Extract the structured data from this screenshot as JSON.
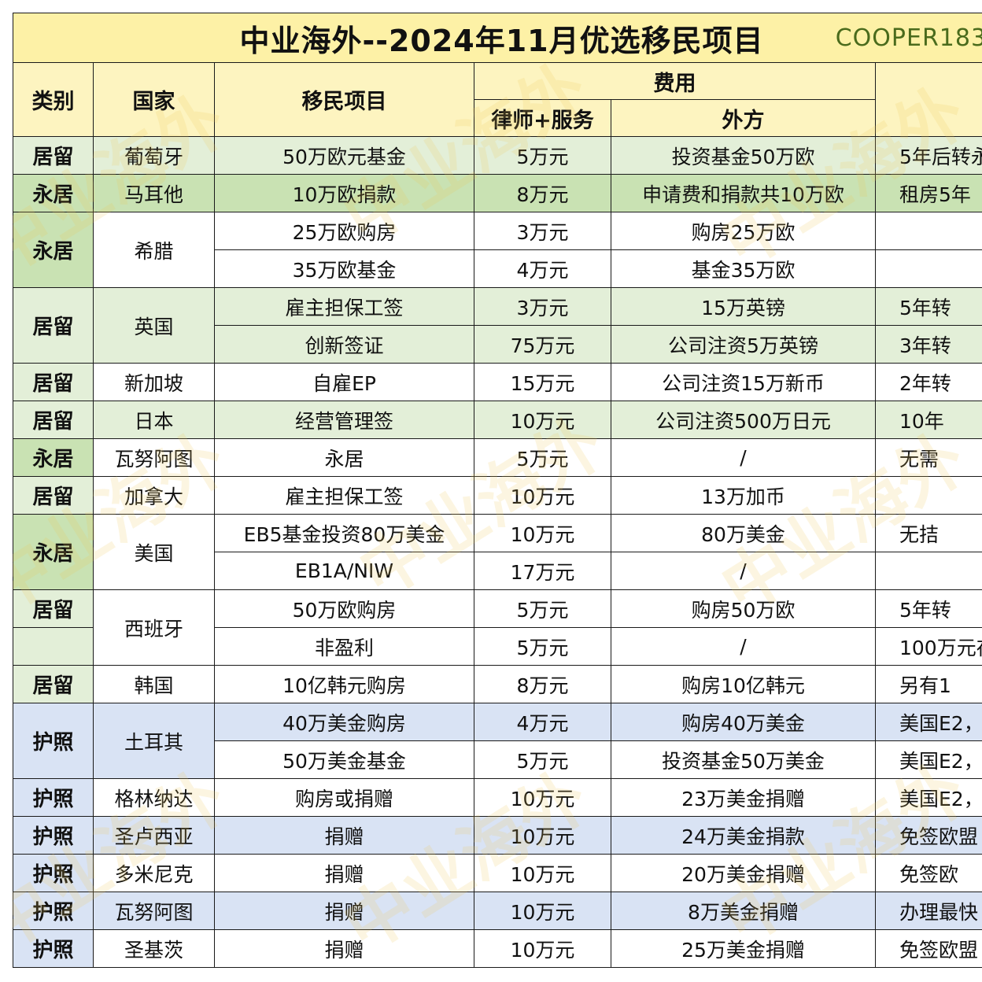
{
  "title": "中业海外--2024年11月优选移民项目",
  "tag": "COOPER183",
  "watermark": "中业海外",
  "headers": {
    "category": "类别",
    "country": "国家",
    "project": "移民项目",
    "fee": "费用",
    "lawyer": "律师+服务",
    "foreign": "外方"
  },
  "rows": [
    {
      "cat": "居留",
      "country": "葡萄牙",
      "project": "50万欧元基金",
      "lawyer": "5万元",
      "foreign": "投资基金50万欧",
      "note": "5年后转永"
    },
    {
      "cat": "永居",
      "country": "马耳他",
      "project": "10万欧捐款",
      "lawyer": "8万元",
      "foreign": "申请费和捐款共10万欧",
      "note": "租房5年"
    },
    {
      "cat": "永居",
      "country": "希腊",
      "project": "25万欧购房",
      "lawyer": "3万元",
      "foreign": "购房25万欧",
      "note": ""
    },
    {
      "cat": "",
      "country": "",
      "project": "35万欧基金",
      "lawyer": "4万元",
      "foreign": "基金35万欧",
      "note": ""
    },
    {
      "cat": "居留",
      "country": "英国",
      "project": "雇主担保工签",
      "lawyer": "3万元",
      "foreign": "15万英镑",
      "note": "5年转"
    },
    {
      "cat": "",
      "country": "",
      "project": "创新签证",
      "lawyer": "75万元",
      "foreign": "公司注资5万英镑",
      "note": "3年转"
    },
    {
      "cat": "居留",
      "country": "新加坡",
      "project": "自雇EP",
      "lawyer": "15万元",
      "foreign": "公司注资15万新币",
      "note": "2年转"
    },
    {
      "cat": "居留",
      "country": "日本",
      "project": "经营管理签",
      "lawyer": "10万元",
      "foreign": "公司注资500万日元",
      "note": "10年"
    },
    {
      "cat": "永居",
      "country": "瓦努阿图",
      "project": "永居",
      "lawyer": "5万元",
      "foreign": "/",
      "note": "无需"
    },
    {
      "cat": "居留",
      "country": "加拿大",
      "project": "雇主担保工签",
      "lawyer": "10万元",
      "foreign": "13万加币",
      "note": ""
    },
    {
      "cat": "永居",
      "country": "美国",
      "project": "EB5基金投资80万美金",
      "lawyer": "10万元",
      "foreign": "80万美金",
      "note": "无拮"
    },
    {
      "cat": "",
      "country": "",
      "project": "EB1A/NIW",
      "lawyer": "17万元",
      "foreign": "/",
      "note": ""
    },
    {
      "cat": "居留",
      "country": "西班牙",
      "project": "50万欧购房",
      "lawyer": "5万元",
      "foreign": "购房50万欧",
      "note": "5年转"
    },
    {
      "cat": "",
      "country": "",
      "project": "非盈利",
      "lawyer": "5万元",
      "foreign": "/",
      "note": "100万元存"
    },
    {
      "cat": "居留",
      "country": "韩国",
      "project": "10亿韩元购房",
      "lawyer": "8万元",
      "foreign": "购房10亿韩元",
      "note": "另有1"
    },
    {
      "cat": "护照",
      "country": "土耳其",
      "project": "40万美金购房",
      "lawyer": "4万元",
      "foreign": "购房40万美金",
      "note": "美国E2，"
    },
    {
      "cat": "",
      "country": "",
      "project": "50万美金基金",
      "lawyer": "5万元",
      "foreign": "投资基金50万美金",
      "note": "美国E2，"
    },
    {
      "cat": "护照",
      "country": "格林纳达",
      "project": "购房或捐赠",
      "lawyer": "10万元",
      "foreign": "23万美金捐赠",
      "note": "美国E2，"
    },
    {
      "cat": "护照",
      "country": "圣卢西亚",
      "project": "捐赠",
      "lawyer": "10万元",
      "foreign": "24万美金捐款",
      "note": "免签欧盟"
    },
    {
      "cat": "护照",
      "country": "多米尼克",
      "project": "捐赠",
      "lawyer": "10万元",
      "foreign": "20万美金捐赠",
      "note": "免签欧"
    },
    {
      "cat": "护照",
      "country": "瓦努阿图",
      "project": "捐赠",
      "lawyer": "10万元",
      "foreign": "8万美金捐赠",
      "note": "办理最快"
    },
    {
      "cat": "护照",
      "country": "圣基茨",
      "project": "捐赠",
      "lawyer": "10万元",
      "foreign": "25万美金捐赠",
      "note": "免签欧盟"
    }
  ]
}
